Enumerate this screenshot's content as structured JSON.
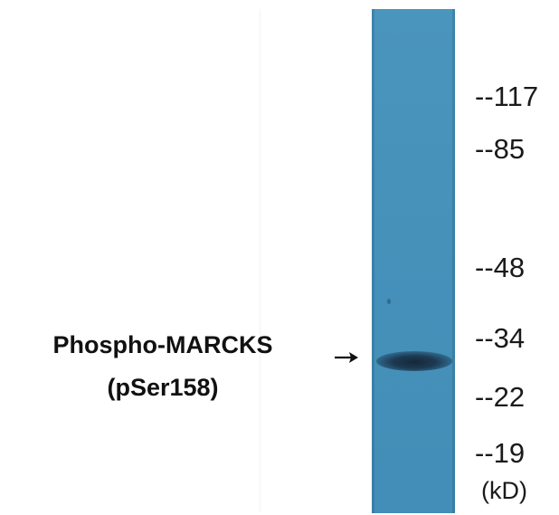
{
  "figure": {
    "protein_label_line1": "Phospho-MARCKS",
    "protein_label_line2": "(pSer158)",
    "unit_label": "(kD)",
    "markers": [
      "--117",
      "--85",
      "--48",
      "--34",
      "--22",
      "--19"
    ],
    "lane_color": "#4591ba",
    "band_color": "#1d3a52"
  }
}
